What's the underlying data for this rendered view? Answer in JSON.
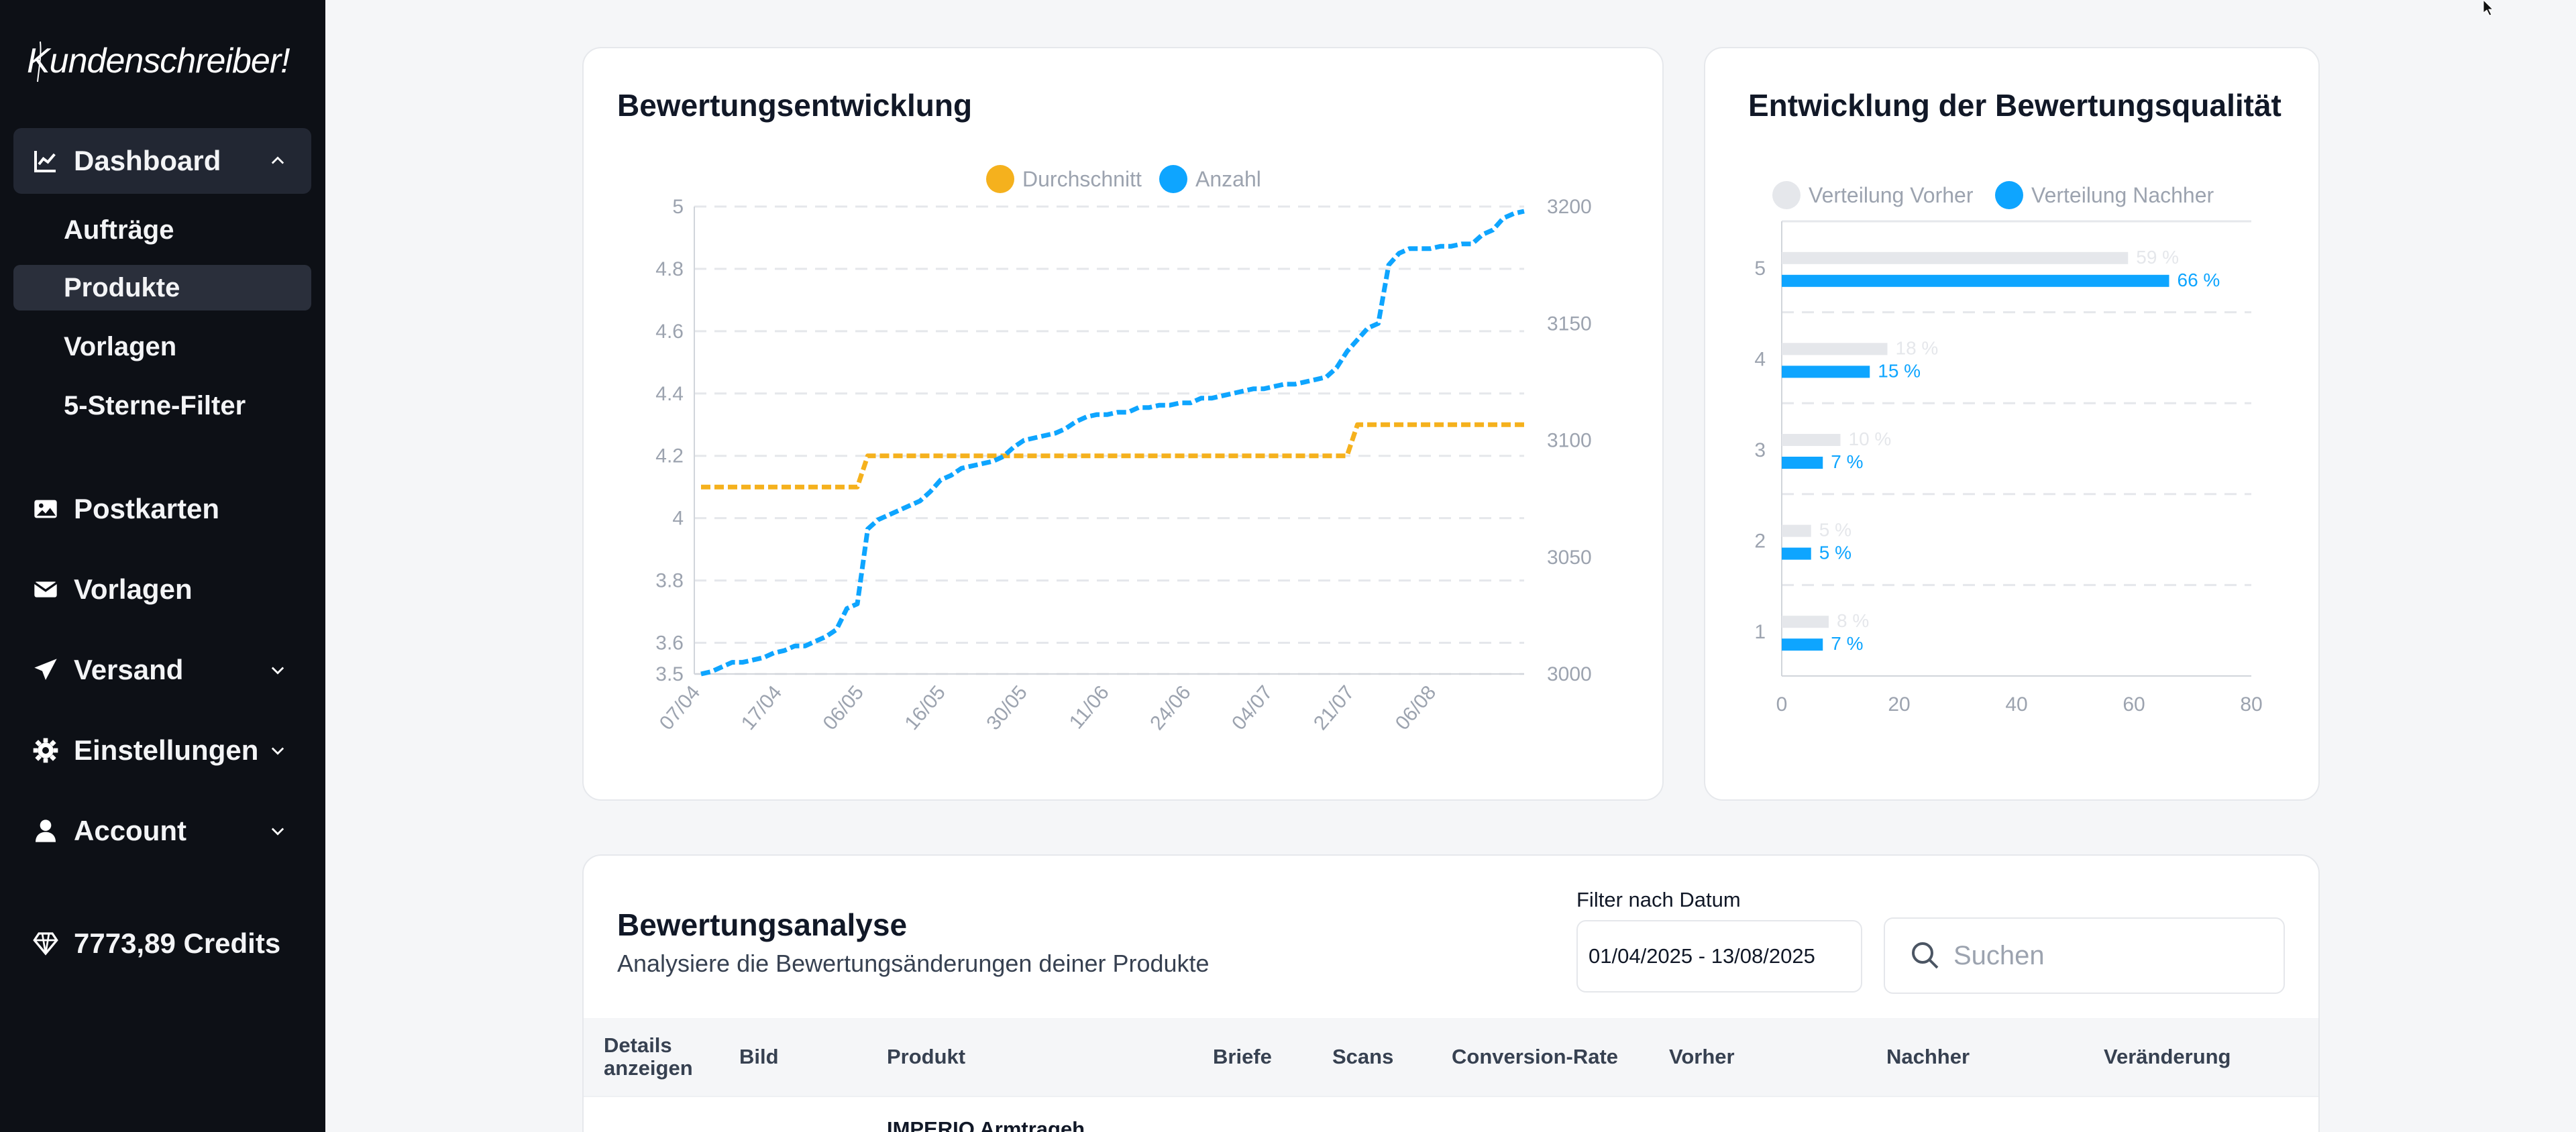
{
  "sidebar": {
    "logo_text": "Kundenschreiber!",
    "dashboard": {
      "label": "Dashboard",
      "icon": "chart-line-icon"
    },
    "sub_items": [
      {
        "label": "Aufträge"
      },
      {
        "label": "Produkte"
      },
      {
        "label": "Vorlagen"
      },
      {
        "label": "5-Sterne-Filter"
      }
    ],
    "postkarten": {
      "label": "Postkarten",
      "icon": "image-icon"
    },
    "vorlagen": {
      "label": "Vorlagen",
      "icon": "envelope-icon"
    },
    "versand": {
      "label": "Versand",
      "icon": "paper-plane-icon"
    },
    "einstellungen": {
      "label": "Einstellungen",
      "icon": "gear-icon"
    },
    "account": {
      "label": "Account",
      "icon": "user-icon"
    },
    "credits": {
      "label": "7773,89 Credits",
      "icon": "diamond-icon"
    }
  },
  "colors": {
    "sidebar_bg": "#0d1016",
    "orange": "#f5b11d",
    "blue": "#0ea5ff",
    "grey_bar": "#e5e7eb"
  },
  "chart_data": [
    {
      "type": "line",
      "title": "Bewertungsentwicklung",
      "legend": [
        "Durchschnitt",
        "Anzahl"
      ],
      "legend_position": "top-center",
      "x_ticks": [
        "07/04",
        "17/04",
        "06/05",
        "16/05",
        "30/05",
        "11/06",
        "24/06",
        "04/07",
        "21/07",
        "06/08"
      ],
      "y_left_ticks": [
        "3.5",
        "3.6",
        "3.8",
        "4",
        "4.2",
        "4.4",
        "4.6",
        "4.8",
        "5"
      ],
      "y_right_ticks": [
        "3000",
        "3050",
        "3100",
        "3150",
        "3200"
      ],
      "ylim_left": [
        3.5,
        5
      ],
      "ylim_right": [
        3000,
        3200
      ],
      "grid": true,
      "series": [
        {
          "name": "Durchschnitt",
          "axis": "left",
          "values": [
            4.1,
            4.1,
            4.1,
            4.1,
            4.1,
            4.1,
            4.1,
            4.1,
            4.1,
            4.1,
            4.1,
            4.1,
            4.1,
            4.1,
            4.1,
            4.1,
            4.2,
            4.2,
            4.2,
            4.2,
            4.2,
            4.2,
            4.2,
            4.2,
            4.2,
            4.2,
            4.2,
            4.2,
            4.2,
            4.2,
            4.2,
            4.2,
            4.2,
            4.2,
            4.2,
            4.2,
            4.2,
            4.2,
            4.2,
            4.2,
            4.2,
            4.2,
            4.2,
            4.2,
            4.2,
            4.2,
            4.2,
            4.2,
            4.2,
            4.2,
            4.2,
            4.2,
            4.2,
            4.2,
            4.2,
            4.2,
            4.2,
            4.2,
            4.2,
            4.2,
            4.2,
            4.2,
            4.2,
            4.3,
            4.3,
            4.3,
            4.3,
            4.3,
            4.3,
            4.3,
            4.3,
            4.3,
            4.3,
            4.3,
            4.3,
            4.3,
            4.3,
            4.3,
            4.3,
            4.3
          ]
        },
        {
          "name": "Anzahl",
          "axis": "right",
          "values": [
            3000,
            3001,
            3003,
            3005,
            3005,
            3006,
            3007,
            3009,
            3010,
            3012,
            3012,
            3014,
            3016,
            3019,
            3028,
            3030,
            3062,
            3066,
            3068,
            3070,
            3072,
            3074,
            3078,
            3083,
            3085,
            3088,
            3089,
            3090,
            3091,
            3093,
            3097,
            3100,
            3101,
            3102,
            3103,
            3105,
            3108,
            3110,
            3111,
            3111,
            3112,
            3112,
            3114,
            3114,
            3115,
            3115,
            3116,
            3116,
            3118,
            3118,
            3119,
            3120,
            3121,
            3122,
            3122,
            3123,
            3124,
            3124,
            3125,
            3126,
            3127,
            3131,
            3138,
            3143,
            3148,
            3150,
            3175,
            3180,
            3182,
            3182,
            3182,
            3183,
            3183,
            3184,
            3184,
            3188,
            3190,
            3195,
            3197,
            3198
          ]
        }
      ]
    },
    {
      "type": "bar",
      "orientation": "horizontal",
      "title": "Entwicklung der Bewertungsqualität",
      "legend": [
        "Verteilung Vorher",
        "Verteilung Nachher"
      ],
      "legend_position": "top-left",
      "categories": [
        "5",
        "4",
        "3",
        "2",
        "1"
      ],
      "x_ticks": [
        "0",
        "20",
        "40",
        "60",
        "80"
      ],
      "xlim": [
        0,
        80
      ],
      "grid": true,
      "series": [
        {
          "name": "Verteilung Vorher",
          "values": [
            59,
            18,
            10,
            5,
            8
          ],
          "labels": [
            "59 %",
            "18 %",
            "10 %",
            "5 %",
            "8 %"
          ]
        },
        {
          "name": "Verteilung Nachher",
          "values": [
            66,
            15,
            7,
            5,
            7
          ],
          "labels": [
            "66 %",
            "15 %",
            "7 %",
            "5 %",
            "7 %"
          ]
        }
      ]
    }
  ],
  "analysis": {
    "title": "Bewertungsanalyse",
    "subtitle": "Analysiere die Bewertungsänderungen deiner Produkte",
    "filter_label": "Filter nach Datum",
    "date_range": "01/04/2025 - 13/08/2025",
    "search_placeholder": "Suchen",
    "columns": [
      "Details anzeigen",
      "Bild",
      "Produkt",
      "Briefe",
      "Scans",
      "Conversion-Rate",
      "Vorher",
      "Nachher",
      "Veränderung"
    ],
    "partial_row_text": "IMPERIO Armtrageh"
  }
}
